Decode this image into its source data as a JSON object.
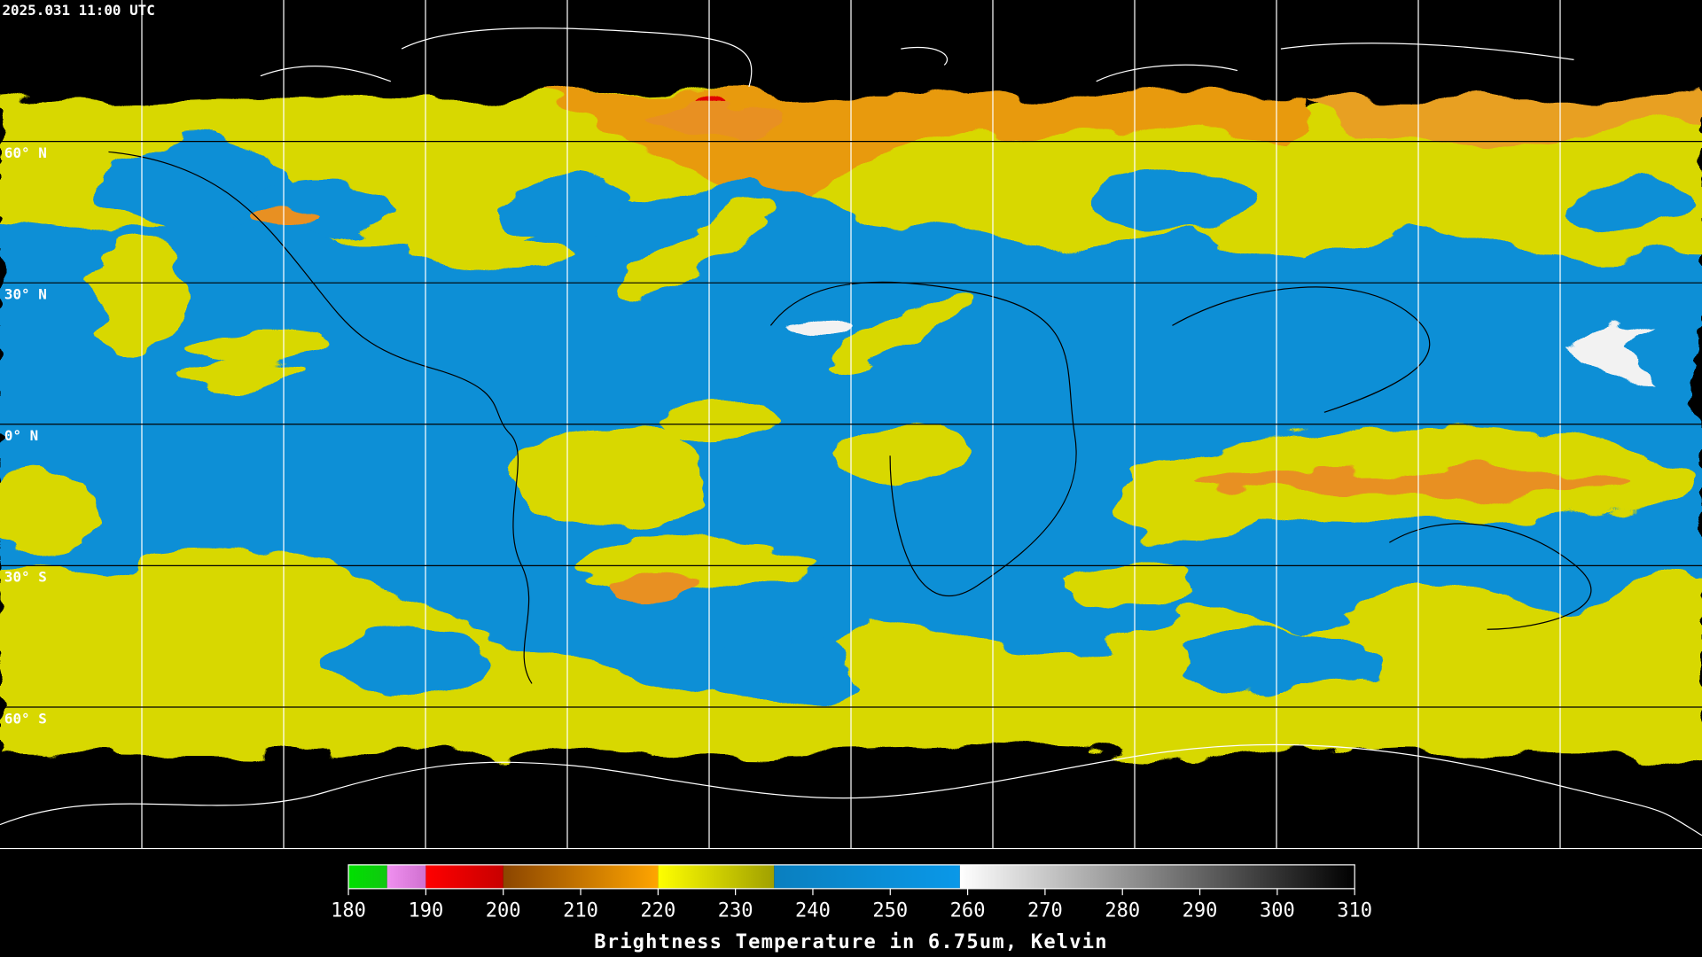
{
  "map": {
    "timestamp": "2025.031 11:00 UTC",
    "lat_labels": [
      "60° N",
      "30° N",
      "0° N",
      "30° S",
      "60° S"
    ]
  },
  "colorbar": {
    "title": "Brightness Temperature in 6.75um, Kelvin",
    "range": [
      180,
      310
    ],
    "ticks": [
      180,
      190,
      200,
      210,
      220,
      230,
      240,
      250,
      260,
      270,
      280,
      290,
      300,
      310
    ],
    "segments": [
      {
        "from": 180,
        "to": 185,
        "colors": [
          "#00e000",
          "#10c810"
        ]
      },
      {
        "from": 185,
        "to": 190,
        "colors": [
          "#f090f0",
          "#d070d0"
        ]
      },
      {
        "from": 190,
        "to": 200,
        "colors": [
          "#ff0000",
          "#c80000"
        ]
      },
      {
        "from": 200,
        "to": 220,
        "colors": [
          "#8b4500",
          "#ffa500"
        ]
      },
      {
        "from": 220,
        "to": 235,
        "colors": [
          "#ffff00",
          "#a0a000"
        ]
      },
      {
        "from": 235,
        "to": 259,
        "colors": [
          "#0a7fbf",
          "#0a98e8"
        ]
      },
      {
        "from": 259,
        "to": 310,
        "colors": [
          "#ffffff",
          "#000000"
        ]
      }
    ]
  }
}
